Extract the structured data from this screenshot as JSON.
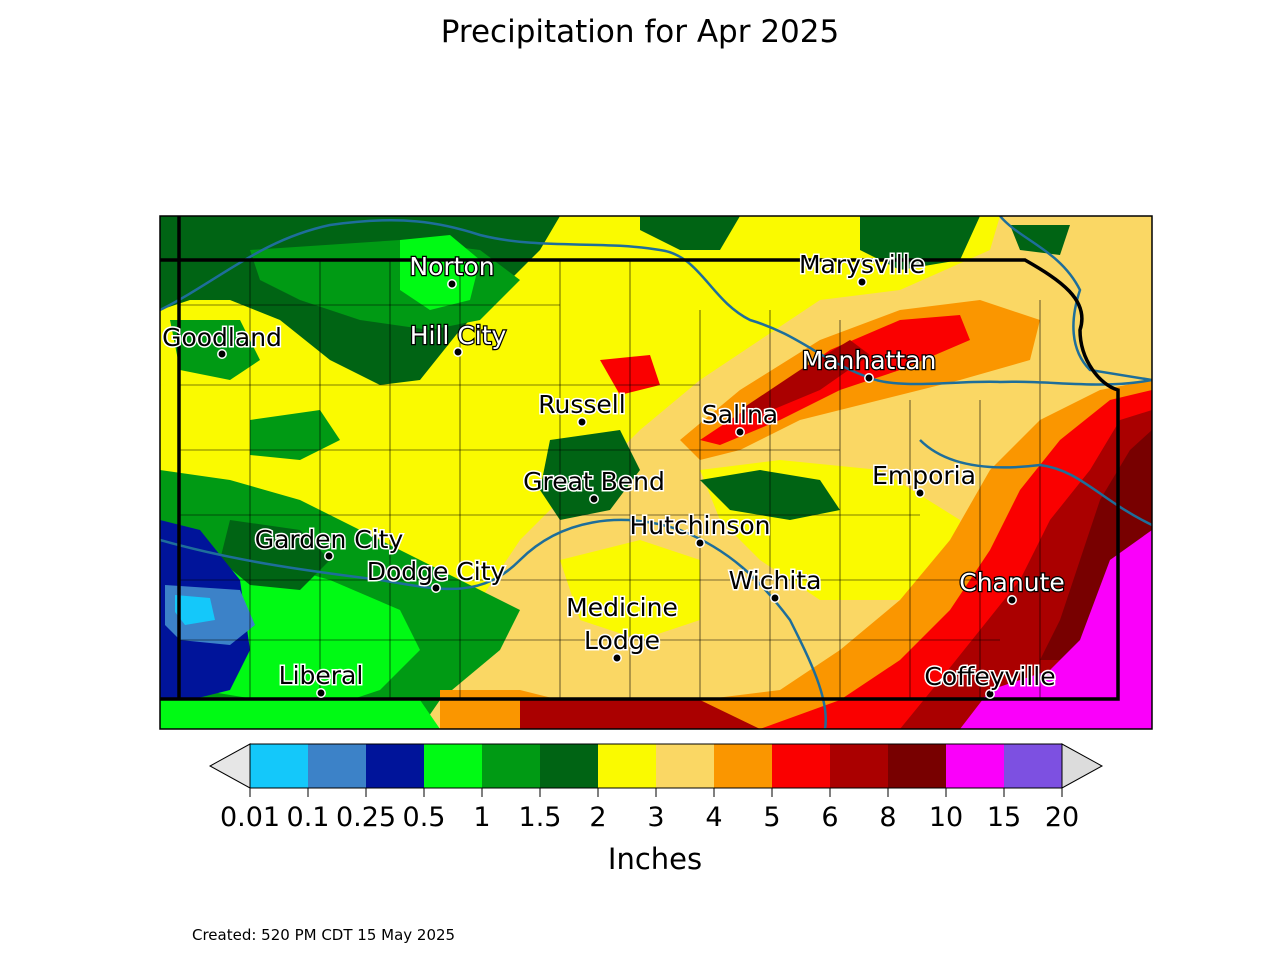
{
  "title": "Precipitation for Apr 2025",
  "created": "Created: 520 PM CDT 15 May 2025",
  "colorbar": {
    "label": "Inches",
    "ticks": [
      "0.01",
      "0.1",
      "0.25",
      "0.5",
      "1",
      "1.5",
      "2",
      "3",
      "4",
      "5",
      "6",
      "8",
      "10",
      "15",
      "20"
    ],
    "colors": [
      "#14c8fa",
      "#3c82c8",
      "#00149a",
      "#00fa14",
      "#009a14",
      "#006414",
      "#fafa00",
      "#fad764",
      "#fa9600",
      "#fa0000",
      "#aa0000",
      "#780000",
      "#fa00fa",
      "#7d50e1"
    ],
    "under_color": "#e6e6e6",
    "over_color": "#dcdcdc"
  },
  "cities": [
    {
      "name": "Norton",
      "label_style": "light"
    },
    {
      "name": "Marysville",
      "label_style": "dark"
    },
    {
      "name": "Goodland",
      "label_style": "dark"
    },
    {
      "name": "Hill City",
      "label_style": "light"
    },
    {
      "name": "Manhattan",
      "label_style": "light"
    },
    {
      "name": "Russell",
      "label_style": "dark"
    },
    {
      "name": "Salina",
      "label_style": "dark"
    },
    {
      "name": "Emporia",
      "label_style": "dark"
    },
    {
      "name": "Great Bend",
      "label_style": "dark"
    },
    {
      "name": "Hutchinson",
      "label_style": "dark"
    },
    {
      "name": "Garden City",
      "label_style": "dark"
    },
    {
      "name": "Dodge City",
      "label_style": "dark"
    },
    {
      "name": "Wichita",
      "label_style": "dark"
    },
    {
      "name": "Chanute",
      "label_style": "light"
    },
    {
      "name": "Medicine\nLodge",
      "label_style": "dark"
    },
    {
      "name": "Liberal",
      "label_style": "dark"
    },
    {
      "name": "Coffeyville",
      "label_style": "dark"
    }
  ]
}
